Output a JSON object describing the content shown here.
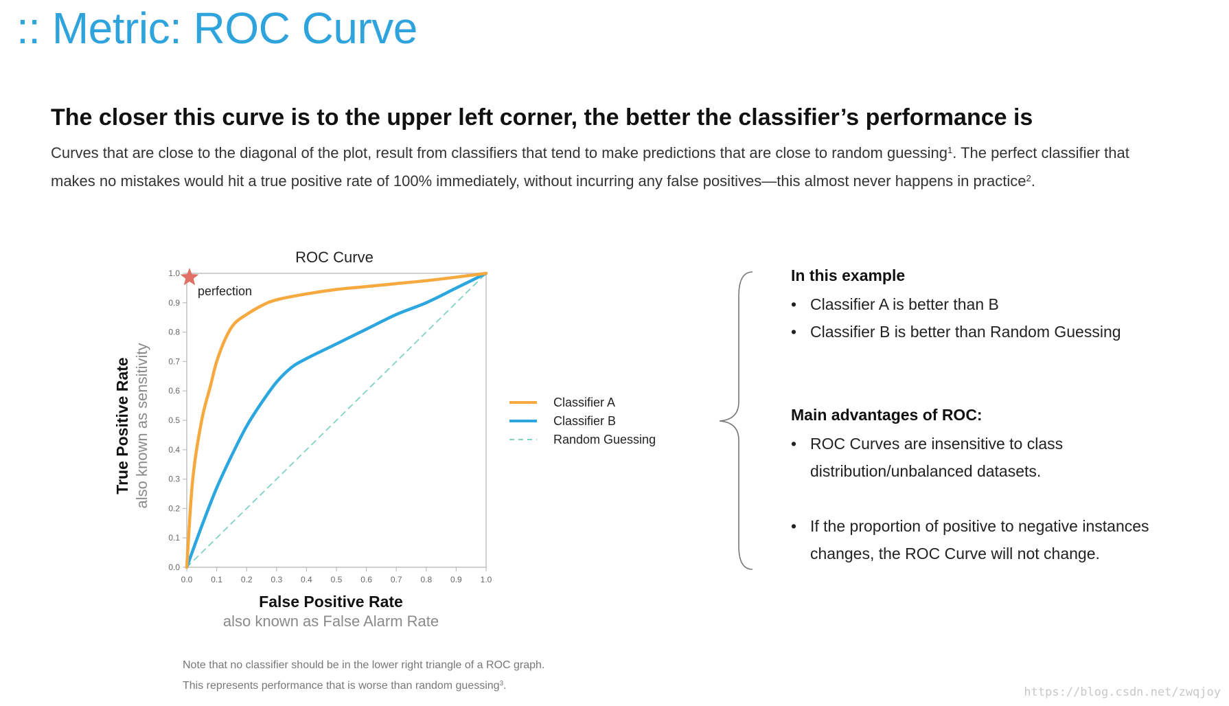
{
  "slide": {
    "title": ":: Metric: ROC Curve",
    "headline": "The closer this curve is to the upper left corner, the better the classifier’s performance is",
    "intro_part1": "Curves that are close to the diagonal of the plot, result from classifiers that tend to make predictions that are close to random guessing",
    "intro_sup1": "1",
    "intro_part2": ". The perfect classifier that makes no mistakes would hit a true positive rate of 100% immediately, without incurring any false positives—this almost never happens in practice",
    "intro_sup2": "2",
    "intro_end": "."
  },
  "chart_data": {
    "type": "line",
    "title": "ROC Curve",
    "xlabel": "False Positive Rate",
    "xlabel_sub": "also known as False Alarm Rate",
    "ylabel": "True Positive Rate",
    "ylabel_sub": "also known as sensitivity",
    "xlim": [
      0,
      1
    ],
    "ylim": [
      0,
      1
    ],
    "xticks": [
      "0.0",
      "0.1",
      "0.2",
      "0.3",
      "0.4",
      "0.5",
      "0.6",
      "0.7",
      "0.8",
      "0.9",
      "1.0"
    ],
    "yticks": [
      "0.0",
      "0.1",
      "0.2",
      "0.3",
      "0.4",
      "0.5",
      "0.6",
      "0.7",
      "0.8",
      "0.9",
      "1.0"
    ],
    "grid": false,
    "legend_position": "right",
    "series": [
      {
        "name": "Classifier A",
        "color": "#f5a93f",
        "style": "solid",
        "x": [
          0.0,
          0.02,
          0.05,
          0.08,
          0.1,
          0.13,
          0.16,
          0.2,
          0.25,
          0.3,
          0.4,
          0.5,
          0.6,
          0.7,
          0.8,
          0.9,
          1.0
        ],
        "y": [
          0.0,
          0.3,
          0.5,
          0.62,
          0.7,
          0.78,
          0.83,
          0.86,
          0.89,
          0.91,
          0.93,
          0.945,
          0.955,
          0.965,
          0.975,
          0.987,
          1.0
        ]
      },
      {
        "name": "Classifier B",
        "color": "#2ba6de",
        "style": "solid",
        "x": [
          0.0,
          0.05,
          0.1,
          0.15,
          0.2,
          0.25,
          0.3,
          0.35,
          0.4,
          0.5,
          0.6,
          0.7,
          0.8,
          0.9,
          1.0
        ],
        "y": [
          0.0,
          0.14,
          0.27,
          0.38,
          0.48,
          0.56,
          0.63,
          0.68,
          0.71,
          0.76,
          0.81,
          0.86,
          0.9,
          0.95,
          1.0
        ]
      },
      {
        "name": "Random Guessing",
        "color": "#7fd3c4",
        "style": "dashed",
        "x": [
          0.0,
          1.0
        ],
        "y": [
          0.0,
          1.0
        ]
      }
    ],
    "annotations": [
      {
        "text": "perfection",
        "x": 0.0,
        "y": 1.0,
        "marker": "star",
        "color": "#e06f66"
      }
    ]
  },
  "panel": {
    "example_heading": "In this example",
    "example_items": [
      "Classifier A is better than B",
      "Classifier B is better than Random Guessing"
    ],
    "advantages_heading": "Main advantages of ROC:",
    "advantages_items": [
      "ROC Curves are insensitive to class distribution/unbalanced datasets.",
      "If the proportion of positive to negative instances changes, the ROC Curve will not change."
    ]
  },
  "footnote": {
    "line1": "Note that no classifier should be in the lower right triangle of a ROC graph.",
    "line2": "This represents performance that is worse than random guessing",
    "line2_sup": "3",
    "line2_end": "."
  },
  "watermark": "https://blog.csdn.net/zwqjoy"
}
